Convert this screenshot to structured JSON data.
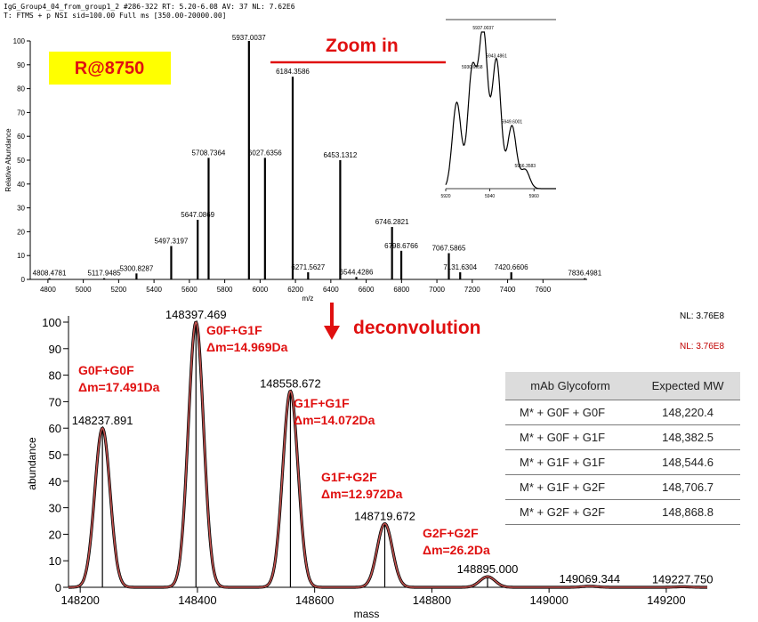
{
  "header": {
    "line1": "IgG_Group4_04_from_group1_2 #286-322  RT: 5.20-6.08  AV: 37  NL: 7.62E6",
    "line2": "T: FTMS + p NSI sid=100.00 Full ms [350.00-20000.00]"
  },
  "resolution_label": "R@8750",
  "zoom_label": "Zoom in",
  "deconvolution_label": "deconvolution",
  "nl_top": "NL: 3.76E8",
  "nl_red": "NL: 3.76E8",
  "table": {
    "headers": [
      "mAb Glycoform",
      "Expected MW"
    ],
    "rows": [
      [
        "M* + G0F + G0F",
        "148,220.4"
      ],
      [
        "M* + G0F + G1F",
        "148,382.5"
      ],
      [
        "M* + G1F + G1F",
        "148,544.6"
      ],
      [
        "M* + G1F + G2F",
        "148,706.7"
      ],
      [
        "M* + G2F + G2F",
        "148,868.8"
      ]
    ]
  },
  "glycoform_annotations": [
    {
      "name": "G0F+G0F",
      "delta": "Δm=17.491Da"
    },
    {
      "name": "G0F+G1F",
      "delta": "Δm=14.969Da"
    },
    {
      "name": "G1F+G1F",
      "delta": "Δm=14.072Da"
    },
    {
      "name": "G1F+G2F",
      "delta": "Δm=12.972Da"
    },
    {
      "name": "G2F+G2F",
      "delta": "Δm=26.2Da"
    }
  ],
  "chart_data": [
    {
      "type": "bar",
      "xlabel": "m/z",
      "ylabel": "Relative Abundance",
      "xlim": [
        4700,
        7850
      ],
      "ylim": [
        0,
        100
      ],
      "x_ticks": [
        4800,
        5000,
        5200,
        5400,
        5600,
        5800,
        6000,
        6200,
        6400,
        6600,
        6800,
        7000,
        7200,
        7400,
        7600
      ],
      "y_ticks": [
        0,
        10,
        20,
        30,
        40,
        50,
        60,
        70,
        80,
        90,
        100
      ],
      "peaks": [
        {
          "x": 4808.4781,
          "y": 0.5,
          "label": "4808.4781"
        },
        {
          "x": 5117.9485,
          "y": 0.5,
          "label": "5117.9485"
        },
        {
          "x": 5300.8287,
          "y": 2.5,
          "label": "5300.8287"
        },
        {
          "x": 5497.3197,
          "y": 14,
          "label": "5497.3197"
        },
        {
          "x": 5647.0869,
          "y": 25,
          "label": "5647.0869"
        },
        {
          "x": 5708.7364,
          "y": 51,
          "label": "5708.7364"
        },
        {
          "x": 5937.0037,
          "y": 100,
          "label": "5937.0037"
        },
        {
          "x": 6027.6356,
          "y": 51,
          "label": "6027.6356"
        },
        {
          "x": 6184.3586,
          "y": 85,
          "label": "6184.3586"
        },
        {
          "x": 6271.5627,
          "y": 3,
          "label": "6271.5627"
        },
        {
          "x": 6453.1312,
          "y": 50,
          "label": "6453.1312"
        },
        {
          "x": 6544.4286,
          "y": 1,
          "label": "6544.4286"
        },
        {
          "x": 6746.2821,
          "y": 22,
          "label": "6746.2821"
        },
        {
          "x": 6798.6766,
          "y": 12,
          "label": "6798.6766"
        },
        {
          "x": 7067.5865,
          "y": 11,
          "label": "7067.5865"
        },
        {
          "x": 7131.6304,
          "y": 3,
          "label": "7131.6304"
        },
        {
          "x": 7420.6606,
          "y": 3,
          "label": "7420.6606"
        },
        {
          "x": 7836.4981,
          "y": 0.5,
          "label": "7836.4981"
        }
      ]
    },
    {
      "type": "line",
      "xlim": [
        5920,
        5970
      ],
      "x_ticks": [
        5920,
        5940,
        5960
      ],
      "series": [
        {
          "x": [
            5925,
            5932,
            5937,
            5943,
            5950,
            5956
          ],
          "y": [
            55,
            75,
            100,
            82,
            40,
            12
          ]
        }
      ],
      "peak_labels": [
        {
          "x": 5932,
          "label": "5930.6958"
        },
        {
          "x": 5937,
          "label": "5937.0037"
        },
        {
          "x": 5943,
          "label": "5943.4861"
        },
        {
          "x": 5950,
          "label": "5949.6001"
        },
        {
          "x": 5956,
          "label": "5956.3583"
        }
      ]
    },
    {
      "type": "line",
      "xlabel": "mass",
      "ylabel": "abundance",
      "xlim": [
        148180,
        149270
      ],
      "ylim": [
        0,
        100
      ],
      "x_ticks": [
        148200,
        148400,
        148600,
        148800,
        149000,
        149200
      ],
      "y_ticks": [
        0,
        10,
        20,
        30,
        40,
        50,
        60,
        70,
        80,
        90,
        100
      ],
      "peaks": [
        {
          "x": 148237.891,
          "y": 60,
          "label": "148237.891"
        },
        {
          "x": 148397.469,
          "y": 100,
          "label": "148397.469"
        },
        {
          "x": 148558.672,
          "y": 74,
          "label": "148558.672"
        },
        {
          "x": 148719.672,
          "y": 24,
          "label": "148719.672"
        },
        {
          "x": 148895.0,
          "y": 4,
          "label": "148895.000"
        },
        {
          "x": 149069.344,
          "y": 0.4,
          "label": "149069.344"
        },
        {
          "x": 149227.75,
          "y": 0.2,
          "label": "149227.750"
        }
      ]
    }
  ]
}
